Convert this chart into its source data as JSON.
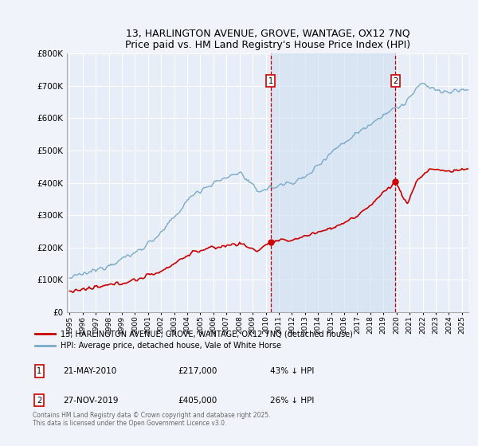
{
  "title": "13, HARLINGTON AVENUE, GROVE, WANTAGE, OX12 7NQ",
  "subtitle": "Price paid vs. HM Land Registry's House Price Index (HPI)",
  "legend_line1": "13, HARLINGTON AVENUE, GROVE, WANTAGE, OX12 7NQ (detached house)",
  "legend_line2": "HPI: Average price, detached house, Vale of White Horse",
  "annotation_text": "Contains HM Land Registry data © Crown copyright and database right 2025.\nThis data is licensed under the Open Government Licence v3.0.",
  "sale1_date": "21-MAY-2010",
  "sale1_price": 217000,
  "sale1_label": "43% ↓ HPI",
  "sale2_date": "27-NOV-2019",
  "sale2_price": 405000,
  "sale2_label": "26% ↓ HPI",
  "sale1_x": 2010.38,
  "sale2_x": 2019.9,
  "ylim": [
    0,
    800000
  ],
  "xlim": [
    1994.8,
    2025.5
  ],
  "background_color": "#f0f4fa",
  "plot_bg_color": "#e8eef8",
  "red_line_color": "#cc0000",
  "blue_line_color": "#7aaacc",
  "shade_color": "#d0e0f0",
  "grid_color": "#ffffff",
  "title_fontsize": 9,
  "subtitle_fontsize": 8
}
